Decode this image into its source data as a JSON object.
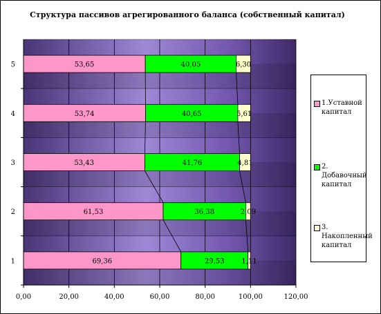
{
  "chart_data": {
    "type": "bar",
    "orientation": "horizontal",
    "stacked": true,
    "title": "Структура пассивов агрегированного баланса (собственный капитал)",
    "categories": [
      "1",
      "2",
      "3",
      "4",
      "5"
    ],
    "series": [
      {
        "name": "1.Уставной капитал",
        "values": [
          69.36,
          61.53,
          53.43,
          53.74,
          53.65
        ],
        "labels": [
          "69,36",
          "61,53",
          "53,43",
          "53,74",
          "53,65"
        ],
        "color": "#ff99cc"
      },
      {
        "name": "2. Добавочный капитал",
        "values": [
          29.53,
          36.38,
          41.76,
          40.65,
          40.05
        ],
        "labels": [
          "29,53",
          "36,38",
          "41,76",
          "40,65",
          "40,05"
        ],
        "color": "#00ff00"
      },
      {
        "name": "3. Накопленный капитал",
        "values": [
          1.11,
          2.09,
          4.81,
          5.61,
          6.3
        ],
        "labels": [
          "1,11",
          "2,09",
          "4,81",
          "5,61",
          "6,30"
        ],
        "color": "#ffffcc"
      }
    ],
    "x_ticks": [
      "0,00",
      "20,00",
      "40,00",
      "60,00",
      "80,00",
      "100,00",
      "120,00"
    ],
    "xlim": [
      0,
      120
    ],
    "grid": true,
    "series_lines": true,
    "legend_position": "right",
    "colors": {
      "plot_background": "#5b3f8c",
      "grid": "#000000",
      "frame": "#000000"
    }
  }
}
